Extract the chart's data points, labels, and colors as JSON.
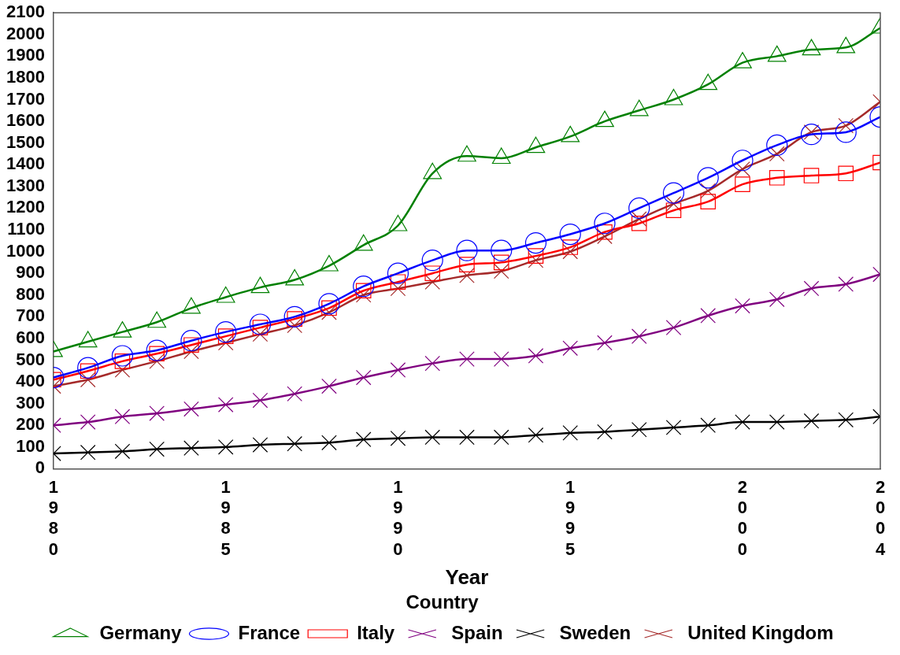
{
  "chart_data": {
    "type": "line",
    "xlabel": "Year",
    "legend_title": "Country",
    "legend": "bottom",
    "x": [
      1980,
      1981,
      1982,
      1983,
      1984,
      1985,
      1986,
      1987,
      1988,
      1989,
      1990,
      1991,
      1992,
      1993,
      1994,
      1995,
      1996,
      1997,
      1998,
      1999,
      2000,
      2001,
      2002,
      2003,
      2004
    ],
    "xlim": [
      1980,
      2004
    ],
    "xticks": [
      1980,
      1985,
      1990,
      1995,
      2000,
      2004
    ],
    "ylim": [
      0,
      2100
    ],
    "yticks": [
      0,
      100,
      200,
      300,
      400,
      500,
      600,
      700,
      800,
      900,
      1000,
      1100,
      1200,
      1300,
      1400,
      1500,
      1600,
      1700,
      1800,
      1900,
      2000,
      2100
    ],
    "series": [
      {
        "name": "Germany",
        "color": "#008000",
        "marker": "triangle",
        "values": [
          540,
          585,
          630,
          675,
          740,
          790,
          835,
          870,
          935,
          1030,
          1120,
          1360,
          1440,
          1430,
          1480,
          1530,
          1600,
          1650,
          1700,
          1770,
          1870,
          1900,
          1930,
          1940,
          2030
        ]
      },
      {
        "name": "France",
        "color": "#0000ff",
        "marker": "circle",
        "values": [
          420,
          465,
          520,
          545,
          590,
          630,
          665,
          700,
          760,
          840,
          900,
          960,
          1005,
          1005,
          1040,
          1080,
          1130,
          1200,
          1270,
          1340,
          1420,
          1490,
          1540,
          1550,
          1620
        ]
      },
      {
        "name": "Italy",
        "color": "#ff0000",
        "marker": "square",
        "values": [
          410,
          450,
          495,
          530,
          570,
          610,
          650,
          690,
          740,
          820,
          860,
          900,
          940,
          950,
          980,
          1020,
          1090,
          1130,
          1190,
          1230,
          1310,
          1340,
          1350,
          1360,
          1410
        ]
      },
      {
        "name": "Spain",
        "color": "#800080",
        "marker": "cross",
        "values": [
          200,
          215,
          240,
          255,
          275,
          295,
          315,
          345,
          380,
          420,
          455,
          485,
          505,
          505,
          520,
          555,
          580,
          610,
          650,
          705,
          750,
          780,
          830,
          850,
          895
        ]
      },
      {
        "name": "Sweden",
        "color": "#000000",
        "marker": "cross",
        "values": [
          70,
          75,
          80,
          90,
          95,
          100,
          110,
          115,
          120,
          135,
          140,
          145,
          145,
          145,
          155,
          165,
          170,
          180,
          190,
          200,
          215,
          215,
          220,
          225,
          240
        ]
      },
      {
        "name": "United Kingdom",
        "color": "#a52a2a",
        "marker": "cross",
        "values": [
          380,
          410,
          455,
          495,
          540,
          580,
          620,
          660,
          720,
          800,
          830,
          860,
          890,
          910,
          960,
          1000,
          1070,
          1150,
          1220,
          1280,
          1380,
          1450,
          1550,
          1580,
          1690
        ]
      }
    ]
  }
}
